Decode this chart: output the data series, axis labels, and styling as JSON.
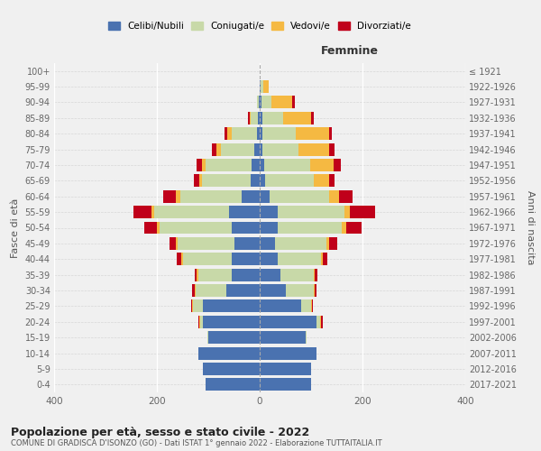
{
  "age_groups": [
    "0-4",
    "5-9",
    "10-14",
    "15-19",
    "20-24",
    "25-29",
    "30-34",
    "35-39",
    "40-44",
    "45-49",
    "50-54",
    "55-59",
    "60-64",
    "65-69",
    "70-74",
    "75-79",
    "80-84",
    "85-89",
    "90-94",
    "95-99",
    "100+"
  ],
  "birth_years": [
    "2017-2021",
    "2012-2016",
    "2007-2011",
    "2002-2006",
    "1997-2001",
    "1992-1996",
    "1987-1991",
    "1982-1986",
    "1977-1981",
    "1972-1976",
    "1967-1971",
    "1962-1966",
    "1957-1961",
    "1952-1956",
    "1947-1951",
    "1942-1946",
    "1937-1941",
    "1932-1936",
    "1927-1931",
    "1922-1926",
    "≤ 1921"
  ],
  "males": {
    "celibi": [
      105,
      110,
      120,
      100,
      110,
      110,
      65,
      55,
      55,
      50,
      55,
      60,
      35,
      18,
      15,
      10,
      5,
      3,
      1,
      0,
      0
    ],
    "coniugati": [
      0,
      0,
      0,
      2,
      5,
      20,
      60,
      65,
      95,
      110,
      140,
      145,
      120,
      95,
      90,
      65,
      50,
      15,
      5,
      0,
      0
    ],
    "vedovi": [
      0,
      0,
      0,
      0,
      2,
      2,
      2,
      2,
      3,
      3,
      5,
      5,
      8,
      5,
      8,
      10,
      8,
      2,
      0,
      0,
      0
    ],
    "divorziati": [
      0,
      0,
      0,
      0,
      2,
      2,
      5,
      5,
      8,
      12,
      25,
      35,
      25,
      10,
      10,
      8,
      5,
      2,
      0,
      0,
      0
    ]
  },
  "females": {
    "nubili": [
      100,
      100,
      110,
      90,
      110,
      80,
      50,
      40,
      35,
      30,
      35,
      35,
      20,
      10,
      8,
      5,
      5,
      5,
      3,
      2,
      0
    ],
    "coniugate": [
      0,
      0,
      0,
      2,
      8,
      20,
      55,
      65,
      85,
      100,
      125,
      130,
      115,
      95,
      90,
      70,
      65,
      40,
      20,
      5,
      0
    ],
    "vedove": [
      0,
      0,
      0,
      0,
      2,
      2,
      2,
      2,
      3,
      5,
      8,
      10,
      20,
      30,
      45,
      60,
      65,
      55,
      40,
      10,
      0
    ],
    "divorziate": [
      0,
      0,
      0,
      0,
      2,
      2,
      3,
      5,
      8,
      15,
      30,
      50,
      25,
      10,
      15,
      10,
      5,
      5,
      5,
      0,
      0
    ]
  },
  "colors": {
    "celibi_nubili": "#4a72b0",
    "coniugati": "#c8d9a8",
    "vedovi": "#f5b942",
    "divorziati": "#c0001a"
  },
  "xlim": 400,
  "title": "Popolazione per età, sesso e stato civile - 2022",
  "subtitle": "COMUNE DI GRADISCA D'ISONZO (GO) - Dati ISTAT 1° gennaio 2022 - Elaborazione TUTTAITALIA.IT",
  "ylabel_left": "Fasce di età",
  "ylabel_right": "Anni di nascita",
  "xlabel_right": "Femmine",
  "background_color": "#f0f0f0",
  "grid_color": "#ffffff",
  "dashed_grid_color": "#cccccc"
}
